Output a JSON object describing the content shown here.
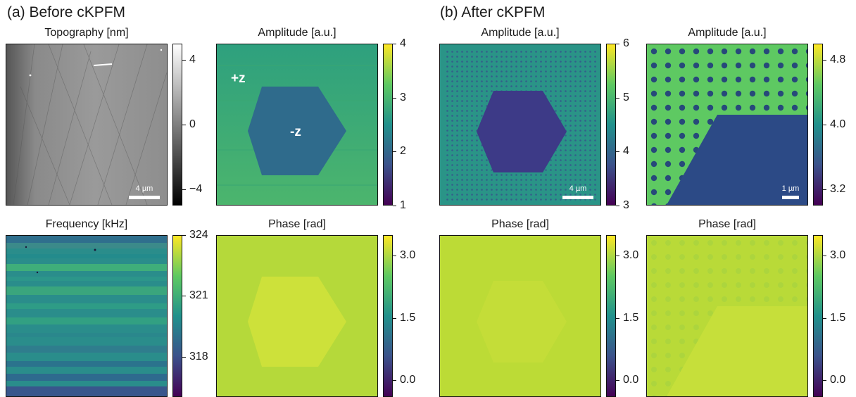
{
  "figure": {
    "section_a": "(a) Before cKPFM",
    "section_b": "(b) After cKPFM"
  },
  "colors": {
    "viridis": [
      "#440154",
      "#3b528b",
      "#21918c",
      "#5ec962",
      "#fde725"
    ],
    "gray": [
      "#000000",
      "#ffffff"
    ],
    "frame": "#111111",
    "annotation": "#ffffff"
  },
  "panels": [
    {
      "id": "a-topography",
      "title": "Topography [nm]",
      "colormap": "gray",
      "clim": [
        -5,
        5
      ],
      "ticks": [
        {
          "v": 4,
          "label": "4"
        },
        {
          "v": 0,
          "label": "0"
        },
        {
          "v": -4,
          "label": "−4"
        }
      ],
      "scalebar": "4 µm"
    },
    {
      "id": "a-amplitude",
      "title": "Amplitude [a.u.]",
      "colormap": "viridis",
      "clim": [
        1,
        4
      ],
      "ticks": [
        {
          "v": 4,
          "label": "4"
        },
        {
          "v": 3,
          "label": "3"
        },
        {
          "v": 2,
          "label": "2"
        },
        {
          "v": 1,
          "label": "1"
        }
      ],
      "annotations": [
        "+z",
        "-z"
      ]
    },
    {
      "id": "b-amplitude-1",
      "title": "Amplitude [a.u.]",
      "colormap": "viridis",
      "clim": [
        3,
        6
      ],
      "ticks": [
        {
          "v": 6,
          "label": "6"
        },
        {
          "v": 5,
          "label": "5"
        },
        {
          "v": 4,
          "label": "4"
        },
        {
          "v": 3,
          "label": "3"
        }
      ],
      "scalebar": "4 µm"
    },
    {
      "id": "b-amplitude-2",
      "title": "Amplitude [a.u.]",
      "colormap": "viridis",
      "clim": [
        3.0,
        5.0
      ],
      "ticks": [
        {
          "v": 4.8,
          "label": "4.8"
        },
        {
          "v": 4.0,
          "label": "4.0"
        },
        {
          "v": 3.2,
          "label": "3.2"
        }
      ],
      "scalebar": "1 µm"
    },
    {
      "id": "a-frequency",
      "title": "Frequency [kHz]",
      "colormap": "viridis",
      "clim": [
        316,
        324
      ],
      "ticks": [
        {
          "v": 324,
          "label": "324"
        },
        {
          "v": 321,
          "label": "321"
        },
        {
          "v": 318,
          "label": "318"
        }
      ]
    },
    {
      "id": "a-phase",
      "title": "Phase [rad]",
      "colormap": "viridis",
      "clim": [
        -0.4,
        3.5
      ],
      "ticks": [
        {
          "v": 3.0,
          "label": "3.0"
        },
        {
          "v": 1.5,
          "label": "1.5"
        },
        {
          "v": 0.0,
          "label": "0.0"
        }
      ]
    },
    {
      "id": "b-phase-1",
      "title": "Phase [rad]",
      "colormap": "viridis",
      "clim": [
        -0.4,
        3.5
      ],
      "ticks": [
        {
          "v": 3.0,
          "label": "3.0"
        },
        {
          "v": 1.5,
          "label": "1.5"
        },
        {
          "v": 0.0,
          "label": "0.0"
        }
      ]
    },
    {
      "id": "b-phase-2",
      "title": "Phase [rad]",
      "colormap": "viridis",
      "clim": [
        -0.4,
        3.5
      ],
      "ticks": [
        {
          "v": 3.0,
          "label": "3.0"
        },
        {
          "v": 1.5,
          "label": "1.5"
        },
        {
          "v": 0.0,
          "label": "0.0"
        }
      ]
    }
  ]
}
